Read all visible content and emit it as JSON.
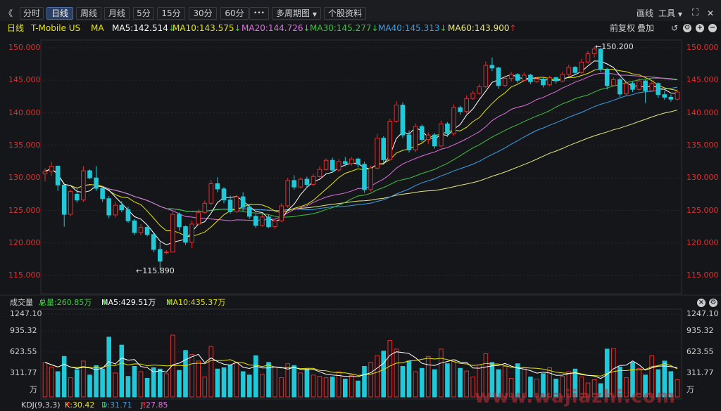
{
  "toolbar": {
    "collapse_glyph": "《",
    "periods": [
      {
        "label": "分时",
        "active": false
      },
      {
        "label": "日线",
        "active": true
      },
      {
        "label": "周线",
        "active": false
      },
      {
        "label": "月线",
        "active": false
      },
      {
        "label": "5分",
        "active": false
      },
      {
        "label": "15分",
        "active": false
      },
      {
        "label": "30分",
        "active": false
      },
      {
        "label": "60分",
        "active": false
      }
    ],
    "more_label": "•••",
    "multi_period_label": "多周期图",
    "stock_info_label": "个股资料",
    "draw_label": "画线",
    "tools_label": "工具"
  },
  "ma_bar": {
    "period": "日线",
    "stock_name": "T-Mobile US",
    "ma_title": "MA",
    "items": [
      {
        "label": "MA5:142.514",
        "dir": "↓",
        "color": "#ffffff"
      },
      {
        "label": "MA10:143.575",
        "dir": "↓",
        "color": "#e6e600"
      },
      {
        "label": "MA20:144.726",
        "dir": "↓",
        "color": "#e070e0"
      },
      {
        "label": "MA30:145.277",
        "dir": "↓",
        "color": "#40c040"
      },
      {
        "label": "MA40:145.313",
        "dir": "↓",
        "color": "#3aa0e8"
      },
      {
        "label": "MA60:143.900",
        "dir": "↑",
        "color": "#e8e880"
      }
    ],
    "adjust_label": "前复权",
    "overlay_label": "叠加"
  },
  "price_axis": [
    "150.000",
    "145.000",
    "140.000",
    "135.000",
    "130.000",
    "125.000",
    "120.000",
    "115.000"
  ],
  "annotations": {
    "high": "150.200",
    "low": "115.890"
  },
  "volume_bar": {
    "title": "成交量",
    "total": "总量:260.85万",
    "total_dir": "↓",
    "ma5": "MA5:429.51万",
    "ma5_dir": "↓",
    "ma10": "MA10:435.37万",
    "ma10_dir": "↓"
  },
  "volume_axis": [
    "1247.10",
    "935.32",
    "623.55",
    "311.77"
  ],
  "volume_unit": "万",
  "kdj_bar": {
    "title": "KDJ(9,3,3)",
    "k": "K:30.42",
    "k_dir": "↑",
    "d": "D:31.71",
    "d_dir": "↓",
    "j": "J:27.85",
    "j_dir": "↑"
  },
  "watermark": "www.wajiazhi.com",
  "colors": {
    "up": "#e03030",
    "down": "#20c8d8",
    "ma5": "#ffffff",
    "ma10": "#e6e600",
    "ma20": "#e070e0",
    "ma30": "#40c040",
    "ma40": "#3aa0e8",
    "ma60": "#e8e880"
  },
  "chart_data": {
    "type": "candlestick",
    "title": "T-Mobile US",
    "ylim": [
      115,
      150
    ],
    "candles": [
      [
        130.6,
        131.5,
        129.5,
        131.0
      ],
      [
        131.0,
        132.5,
        130.3,
        131.8
      ],
      [
        131.8,
        131.9,
        128.0,
        128.9
      ],
      [
        128.9,
        129.0,
        122.5,
        124.4
      ],
      [
        124.4,
        128.2,
        124.1,
        127.9
      ],
      [
        127.5,
        128.5,
        126.2,
        126.6
      ],
      [
        126.6,
        131.8,
        126.3,
        131.1
      ],
      [
        131.1,
        131.3,
        129.8,
        130.0
      ],
      [
        130.0,
        131.8,
        128.0,
        128.4
      ],
      [
        128.4,
        128.7,
        126.3,
        126.8
      ],
      [
        126.8,
        127.2,
        123.8,
        124.3
      ],
      [
        124.3,
        126.3,
        123.9,
        125.8
      ],
      [
        125.8,
        126.4,
        124.7,
        125.1
      ],
      [
        125.1,
        125.6,
        123.1,
        123.4
      ],
      [
        123.4,
        123.7,
        121.2,
        121.6
      ],
      [
        121.6,
        122.9,
        121.2,
        122.4
      ],
      [
        122.4,
        122.8,
        121.0,
        121.3
      ],
      [
        121.3,
        121.5,
        118.6,
        119.0
      ],
      [
        119.0,
        120.1,
        115.9,
        117.2
      ],
      [
        118.5,
        118.9,
        118.3,
        118.6
      ],
      [
        118.6,
        124.8,
        118.6,
        124.4
      ],
      [
        124.4,
        124.7,
        121.9,
        122.5
      ],
      [
        122.5,
        122.7,
        119.7,
        120.1
      ],
      [
        120.1,
        123.4,
        119.2,
        122.9
      ],
      [
        122.9,
        125.2,
        122.7,
        124.7
      ],
      [
        124.7,
        126.5,
        124.5,
        126.1
      ],
      [
        126.1,
        129.7,
        125.8,
        129.1
      ],
      [
        129.1,
        130.1,
        127.8,
        128.3
      ],
      [
        128.3,
        128.6,
        126.1,
        126.6
      ],
      [
        126.6,
        127.3,
        124.5,
        124.8
      ],
      [
        124.8,
        127.4,
        124.6,
        127.1
      ],
      [
        127.1,
        127.8,
        124.9,
        125.5
      ],
      [
        125.5,
        126.0,
        123.7,
        124.1
      ],
      [
        124.1,
        124.5,
        122.3,
        122.7
      ],
      [
        122.7,
        124.4,
        122.5,
        124.0
      ],
      [
        124.0,
        124.3,
        122.3,
        122.5
      ],
      [
        122.5,
        123.7,
        122.2,
        123.4
      ],
      [
        123.4,
        126.1,
        123.2,
        125.7
      ],
      [
        125.7,
        130.0,
        125.4,
        129.6
      ],
      [
        129.6,
        130.4,
        128.2,
        128.6
      ],
      [
        128.6,
        130.1,
        128.4,
        129.8
      ],
      [
        129.8,
        130.2,
        128.5,
        129.0
      ],
      [
        129.0,
        130.6,
        128.8,
        130.2
      ],
      [
        130.2,
        131.8,
        129.9,
        131.3
      ],
      [
        131.3,
        133.0,
        131.1,
        132.7
      ],
      [
        132.7,
        133.1,
        130.8,
        131.2
      ],
      [
        131.2,
        132.9,
        130.9,
        132.5
      ],
      [
        132.5,
        133.2,
        131.8,
        132.2
      ],
      [
        132.2,
        133.2,
        131.9,
        132.9
      ],
      [
        132.9,
        133.1,
        131.6,
        132.1
      ],
      [
        132.1,
        132.5,
        127.7,
        128.2
      ],
      [
        128.2,
        131.9,
        127.9,
        131.5
      ],
      [
        131.5,
        136.8,
        131.3,
        136.1
      ],
      [
        136.1,
        136.4,
        132.3,
        132.8
      ],
      [
        132.8,
        139.1,
        132.6,
        138.7
      ],
      [
        138.7,
        141.8,
        138.5,
        141.2
      ],
      [
        141.2,
        141.6,
        136.1,
        136.6
      ],
      [
        136.6,
        137.3,
        133.9,
        134.3
      ],
      [
        134.3,
        138.4,
        134.0,
        137.9
      ],
      [
        137.9,
        138.2,
        135.5,
        135.9
      ],
      [
        135.9,
        137.0,
        135.2,
        136.6
      ],
      [
        136.6,
        136.9,
        134.5,
        134.9
      ],
      [
        134.9,
        138.8,
        134.6,
        138.3
      ],
      [
        138.3,
        138.6,
        136.3,
        136.8
      ],
      [
        136.8,
        141.3,
        136.5,
        140.8
      ],
      [
        140.8,
        141.1,
        139.7,
        140.2
      ],
      [
        140.2,
        142.7,
        139.9,
        142.2
      ],
      [
        142.2,
        143.4,
        142.0,
        143.0
      ],
      [
        143.0,
        144.4,
        142.8,
        144.0
      ],
      [
        144.0,
        147.9,
        143.8,
        147.3
      ],
      [
        147.3,
        148.5,
        146.4,
        146.9
      ],
      [
        146.9,
        147.1,
        143.7,
        144.2
      ],
      [
        144.2,
        145.7,
        144.0,
        145.3
      ],
      [
        145.3,
        146.3,
        144.8,
        145.9
      ],
      [
        145.9,
        146.1,
        144.6,
        145.0
      ],
      [
        145.0,
        146.2,
        144.8,
        145.8
      ],
      [
        145.8,
        146.0,
        144.4,
        144.8
      ],
      [
        144.8,
        145.5,
        144.6,
        145.2
      ],
      [
        145.2,
        145.4,
        143.9,
        144.3
      ],
      [
        144.3,
        145.7,
        144.1,
        145.4
      ],
      [
        145.4,
        145.6,
        144.5,
        144.9
      ],
      [
        144.9,
        146.3,
        144.7,
        145.9
      ],
      [
        145.9,
        147.4,
        145.6,
        147.0
      ],
      [
        147.0,
        147.2,
        145.8,
        146.2
      ],
      [
        146.2,
        148.3,
        146.0,
        147.8
      ],
      [
        147.8,
        149.5,
        147.6,
        149.1
      ],
      [
        149.1,
        150.2,
        148.5,
        149.8
      ],
      [
        149.8,
        150.0,
        146.3,
        146.7
      ],
      [
        146.7,
        146.9,
        143.6,
        144.2
      ],
      [
        144.2,
        145.5,
        144.0,
        145.1
      ],
      [
        145.1,
        145.4,
        142.4,
        142.9
      ],
      [
        142.9,
        144.9,
        142.7,
        144.5
      ],
      [
        144.5,
        144.8,
        143.2,
        143.6
      ],
      [
        143.6,
        145.3,
        143.4,
        144.9
      ],
      [
        144.9,
        145.1,
        141.5,
        143.4
      ],
      [
        143.4,
        144.8,
        143.2,
        144.5
      ],
      [
        144.5,
        144.7,
        142.3,
        142.8
      ],
      [
        142.8,
        143.4,
        142.0,
        142.4
      ],
      [
        142.4,
        142.8,
        141.7,
        142.1
      ],
      [
        142.1,
        143.6,
        141.9,
        143.2
      ]
    ],
    "volume_ylim": [
      0,
      1247.1
    ],
    "volume_unit": "万",
    "volume": [
      520,
      450,
      380,
      610,
      290,
      410,
      540,
      330,
      470,
      420,
      900,
      360,
      780,
      310,
      460,
      380,
      280,
      440,
      420,
      350,
      930,
      400,
      700,
      640,
      540,
      300,
      760,
      420,
      440,
      480,
      510,
      380,
      330,
      620,
      340,
      520,
      450,
      290,
      500,
      470,
      360,
      420,
      330,
      310,
      290,
      300,
      380,
      270,
      330,
      240,
      460,
      520,
      620,
      690,
      850,
      720,
      460,
      540,
      380,
      430,
      610,
      410,
      720,
      500,
      560,
      430,
      390,
      300,
      480,
      650,
      520,
      410,
      460,
      280,
      500,
      440,
      300,
      270,
      350,
      440,
      270,
      310,
      380,
      420,
      300,
      210,
      260,
      200,
      720,
      730,
      450,
      290,
      520,
      430,
      330,
      620,
      410,
      540,
      380,
      260
    ]
  }
}
